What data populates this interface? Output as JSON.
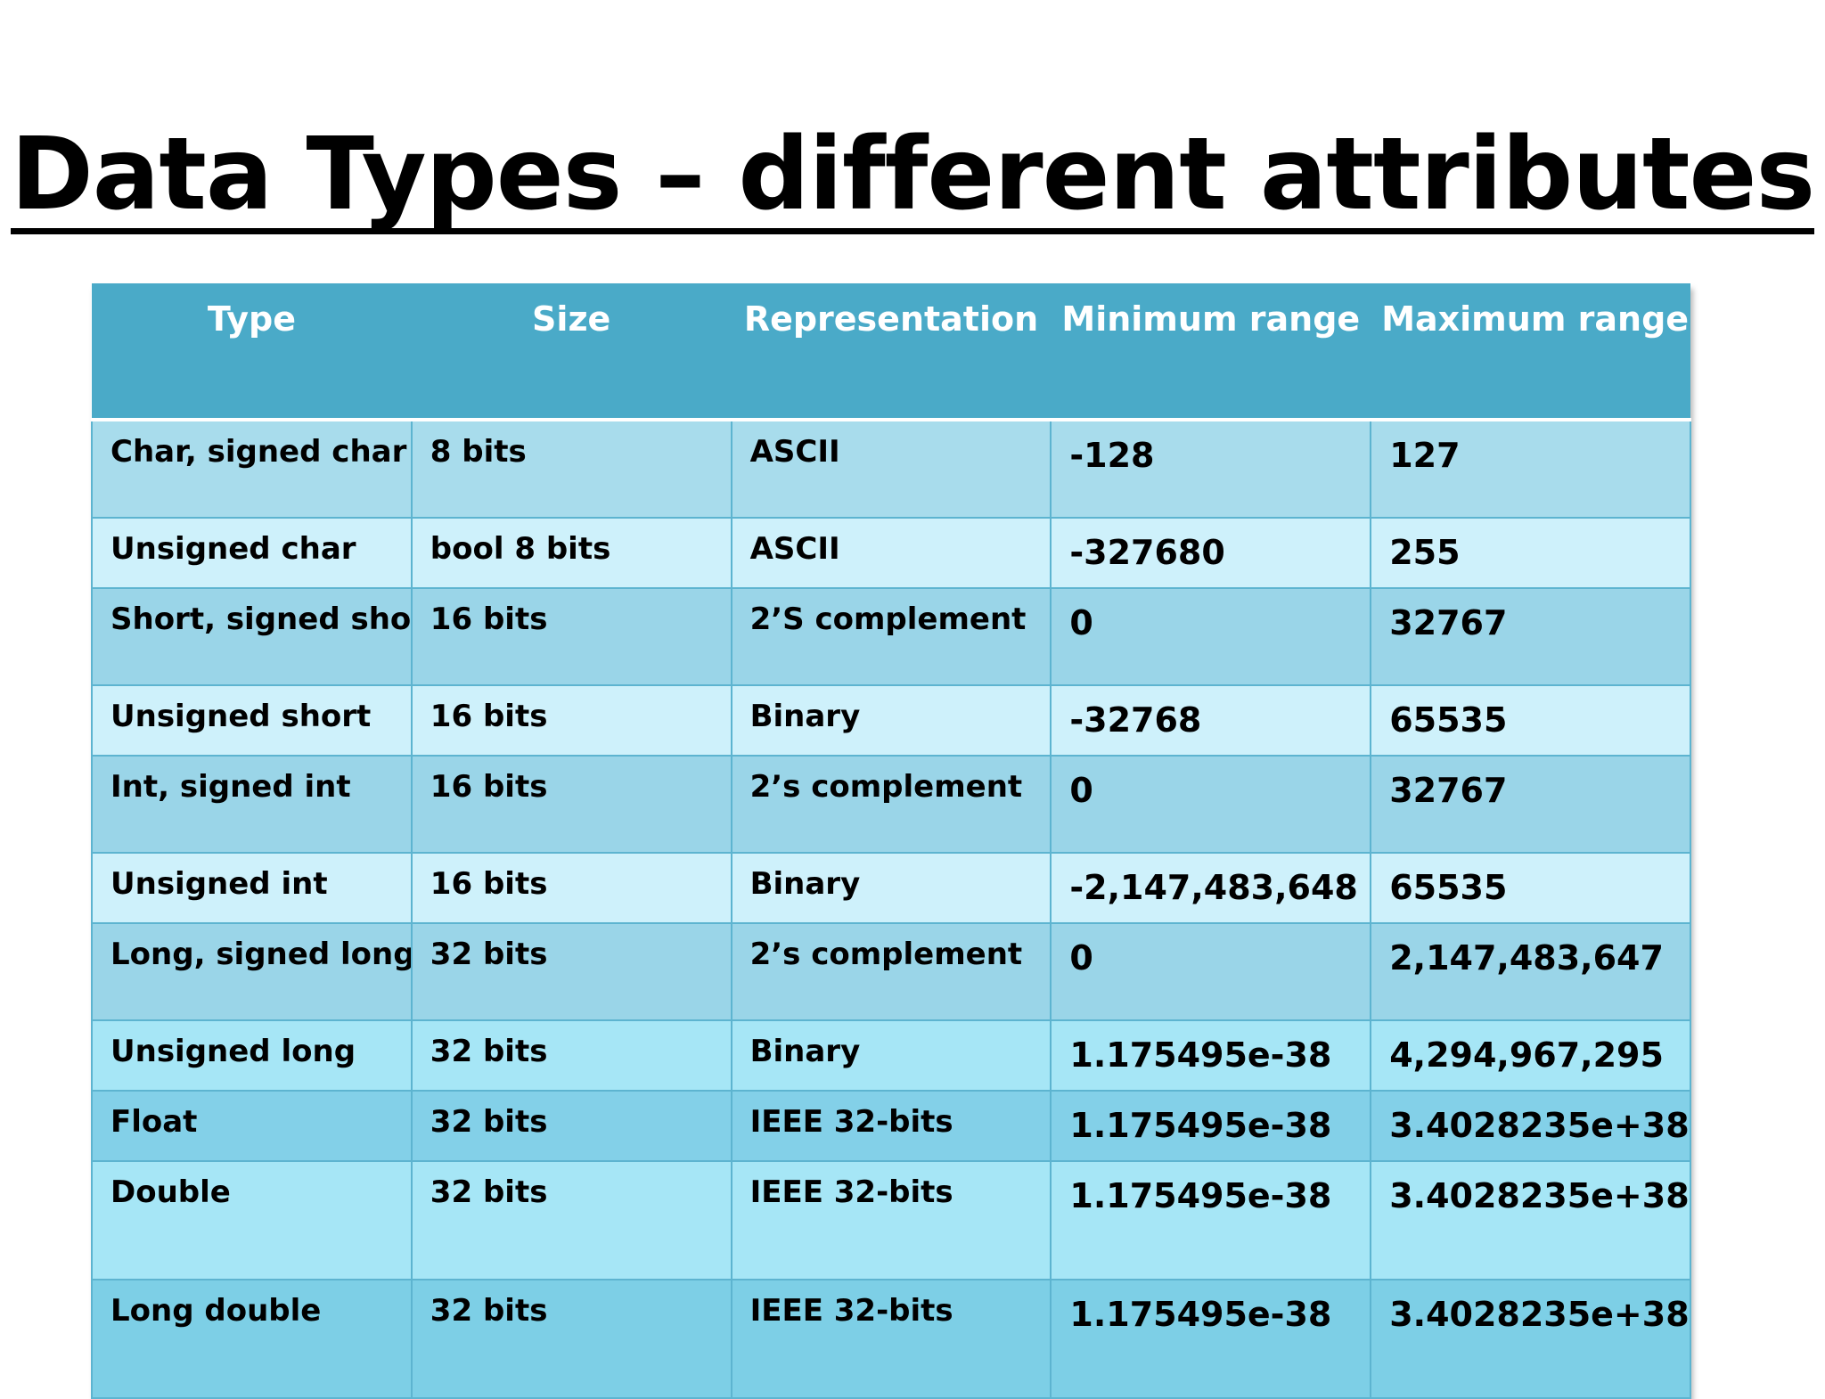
{
  "title": "Data Types – different attributes",
  "table": {
    "headers": [
      "Type",
      "Size",
      "Representation",
      "Minimum range",
      "Maximum range"
    ],
    "rows": [
      [
        "Char, signed char",
        "8 bits",
        "ASCII",
        "-128",
        "127"
      ],
      [
        "Unsigned char",
        "bool 8 bits",
        "ASCII",
        "-327680",
        "255"
      ],
      [
        "Short, signed short",
        "16 bits",
        "2’S  complement",
        "0",
        "32767"
      ],
      [
        "Unsigned short",
        "16 bits",
        "Binary",
        "-32768",
        "65535"
      ],
      [
        "Int, signed int",
        "16 bits",
        "2’s complement",
        "0",
        "32767"
      ],
      [
        "Unsigned int",
        "16 bits",
        "Binary",
        "-2,147,483,648",
        "65535"
      ],
      [
        "Long, signed long",
        "32 bits",
        "2’s complement",
        "0",
        "2,147,483,647"
      ],
      [
        "Unsigned long",
        "32 bits",
        "Binary",
        "1.175495e-38",
        "4,294,967,295"
      ],
      [
        "Float",
        "32 bits",
        "IEEE 32-bits",
        "1.175495e-38",
        "3.4028235e+38"
      ],
      [
        "Double",
        "32 bits",
        "IEEE 32-bits",
        "1.175495e-38",
        "3.4028235e+38"
      ],
      [
        "Long double",
        "32 bits",
        "IEEE 32-bits",
        "1.175495e-38",
        "3.4028235e+38"
      ]
    ]
  },
  "colors": {
    "header_bg": "#4aaac8",
    "header_text": "#ffffff",
    "row_light": "#cef1fb",
    "row_medium": "#a8dcec"
  }
}
